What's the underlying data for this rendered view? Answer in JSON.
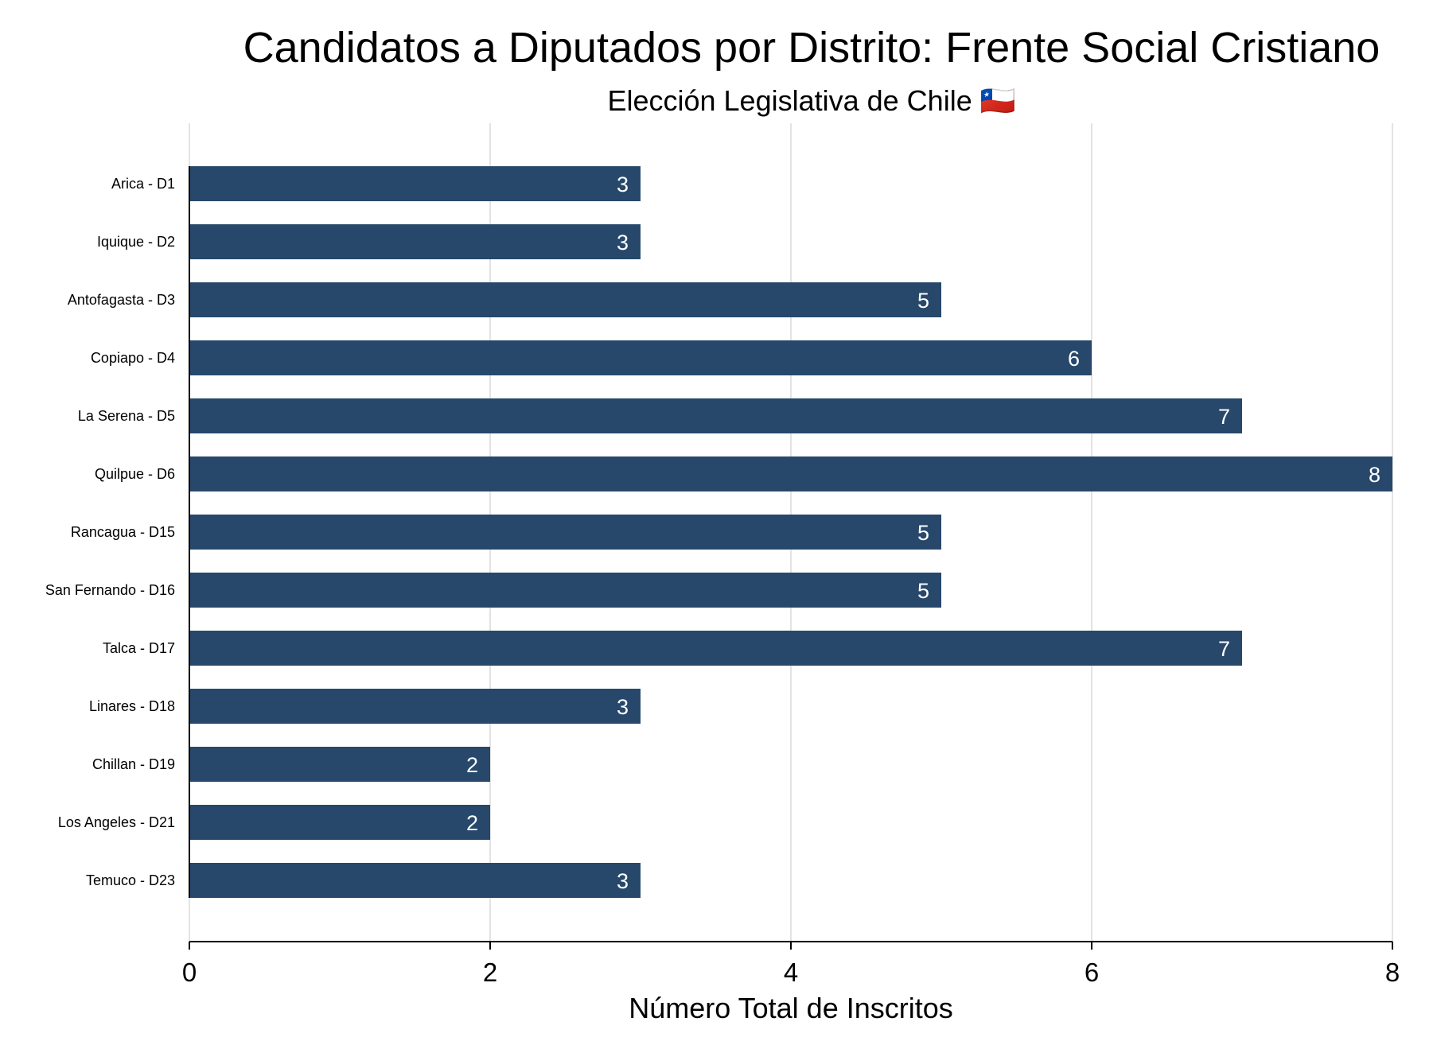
{
  "chart_data": {
    "type": "bar",
    "orientation": "horizontal",
    "title": "Candidatos a Diputados por Distrito: Frente Social Cristiano",
    "subtitle": "Elección Legislativa de Chile 🇨🇱",
    "xlabel": "Número Total de Inscritos",
    "ylabel": "",
    "xlim": [
      0,
      8
    ],
    "xticks": [
      0,
      2,
      4,
      6,
      8
    ],
    "grid": "vertical",
    "legend": "none",
    "bar_color": "#27486b",
    "value_label_color": "#ffffff",
    "categories": [
      "Arica - D1",
      "Iquique - D2",
      "Antofagasta - D3",
      "Copiapo - D4",
      "La Serena - D5",
      "Quilpue - D6",
      "Rancagua - D15",
      "San Fernando - D16",
      "Talca - D17",
      "Linares - D18",
      "Chillan - D19",
      "Los Angeles - D21",
      "Temuco - D23"
    ],
    "values": [
      3,
      3,
      5,
      6,
      7,
      8,
      5,
      5,
      7,
      3,
      2,
      2,
      3
    ]
  }
}
